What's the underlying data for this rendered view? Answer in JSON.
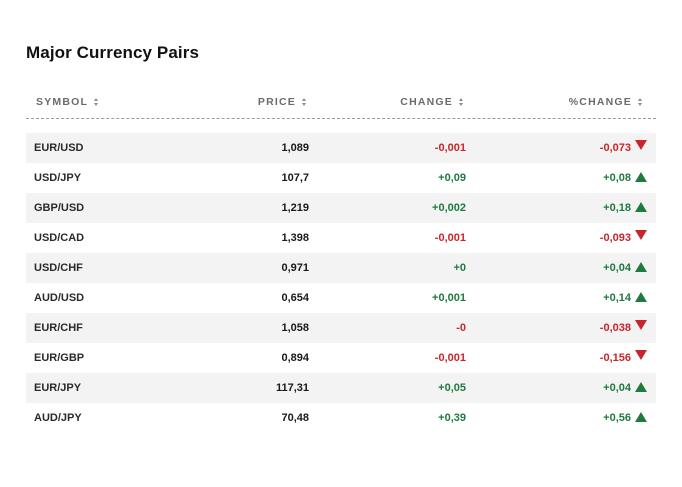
{
  "widget": {
    "title": "Major Currency Pairs"
  },
  "columns": [
    {
      "label": "SYMBOL"
    },
    {
      "label": "PRICE"
    },
    {
      "label": "CHANGE"
    },
    {
      "label": "%CHANGE"
    }
  ],
  "rows": [
    {
      "symbol": "EUR/USD",
      "price": "1,089",
      "change": "-0,001",
      "pct_change": "-0,073",
      "direction": "down"
    },
    {
      "symbol": "USD/JPY",
      "price": "107,7",
      "change": "+0,09",
      "pct_change": "+0,08",
      "direction": "up"
    },
    {
      "symbol": "GBP/USD",
      "price": "1,219",
      "change": "+0,002",
      "pct_change": "+0,18",
      "direction": "up"
    },
    {
      "symbol": "USD/CAD",
      "price": "1,398",
      "change": "-0,001",
      "pct_change": "-0,093",
      "direction": "down"
    },
    {
      "symbol": "USD/CHF",
      "price": "0,971",
      "change": "+0",
      "pct_change": "+0,04",
      "direction": "up"
    },
    {
      "symbol": "AUD/USD",
      "price": "0,654",
      "change": "+0,001",
      "pct_change": "+0,14",
      "direction": "up"
    },
    {
      "symbol": "EUR/CHF",
      "price": "1,058",
      "change": "-0",
      "pct_change": "-0,038",
      "direction": "down"
    },
    {
      "symbol": "EUR/GBP",
      "price": "0,894",
      "change": "-0,001",
      "pct_change": "-0,156",
      "direction": "down"
    },
    {
      "symbol": "EUR/JPY",
      "price": "117,31",
      "change": "+0,05",
      "pct_change": "+0,04",
      "direction": "up"
    },
    {
      "symbol": "AUD/JPY",
      "price": "70,48",
      "change": "+0,39",
      "pct_change": "+0,56",
      "direction": "up"
    }
  ],
  "colors": {
    "positive": "#1f7a3e",
    "negative": "#c8262b",
    "row_shade": "#f3f3f3"
  },
  "icons": {
    "sort": "sort-updown-icon",
    "up": "triangle-up-icon",
    "down": "triangle-down-icon"
  }
}
